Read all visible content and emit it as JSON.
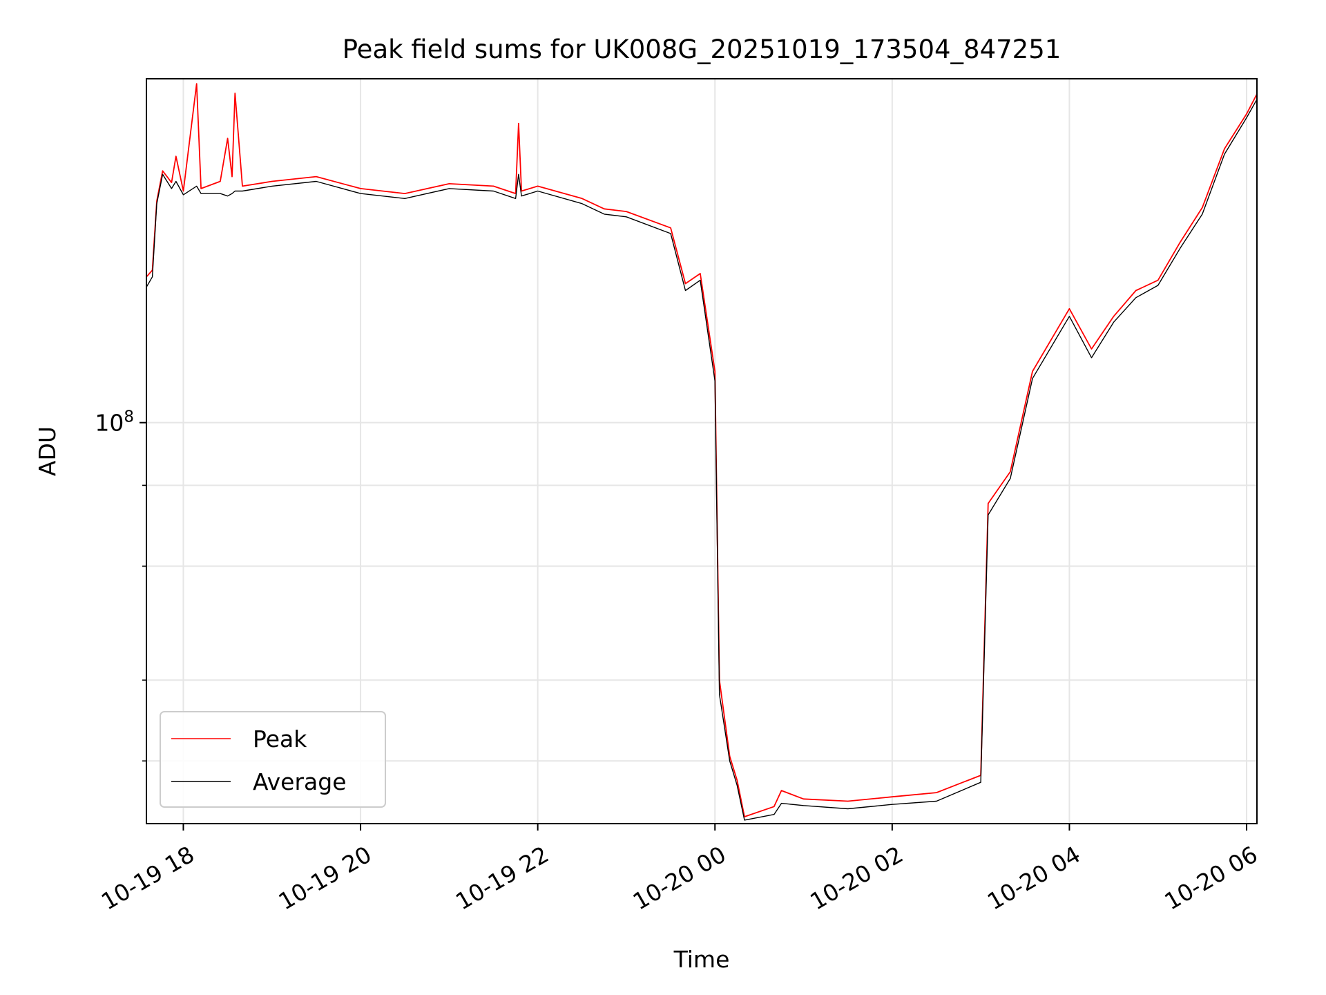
{
  "chart_data": {
    "type": "line",
    "title": "Peak field sums for UK008G_20251019_173504_847251",
    "xlabel": "Time",
    "ylabel": "ADU",
    "y_scale": "log",
    "grid": true,
    "legend_position": "lower-left",
    "xlim": [
      "2025-10-19 17:35",
      "2025-10-20 06:07"
    ],
    "ylim": [
      24000000,
      340000000
    ],
    "x_ticks": [
      {
        "value": "2025-10-19 18:00",
        "label": "10-19 18"
      },
      {
        "value": "2025-10-19 20:00",
        "label": "10-19 20"
      },
      {
        "value": "2025-10-19 22:00",
        "label": "10-19 22"
      },
      {
        "value": "2025-10-20 00:00",
        "label": "10-20 00"
      },
      {
        "value": "2025-10-20 02:00",
        "label": "10-20 02"
      },
      {
        "value": "2025-10-20 04:00",
        "label": "10-20 04"
      },
      {
        "value": "2025-10-20 06:00",
        "label": "10-20 06"
      }
    ],
    "y_ticks_major": [
      {
        "value": 100000000,
        "label_base": "10",
        "label_exp": "8"
      }
    ],
    "y_ticks_minor": [
      30000000,
      40000000,
      60000000,
      80000000
    ],
    "series": [
      {
        "name": "Peak",
        "color": "#ff0000",
        "points": [
          [
            "2025-10-19 17:35",
            168000000
          ],
          [
            "2025-10-19 17:39",
            172000000
          ],
          [
            "2025-10-19 17:42",
            220000000
          ],
          [
            "2025-10-19 17:46",
            245000000
          ],
          [
            "2025-10-19 17:52",
            235000000
          ],
          [
            "2025-10-19 17:55",
            258000000
          ],
          [
            "2025-10-19 18:00",
            228000000
          ],
          [
            "2025-10-19 18:09",
            334000000
          ],
          [
            "2025-10-19 18:12",
            230000000
          ],
          [
            "2025-10-19 18:25",
            236000000
          ],
          [
            "2025-10-19 18:30",
            275000000
          ],
          [
            "2025-10-19 18:33",
            240000000
          ],
          [
            "2025-10-19 18:35",
            323000000
          ],
          [
            "2025-10-19 18:40",
            232000000
          ],
          [
            "2025-10-19 19:00",
            236000000
          ],
          [
            "2025-10-19 19:30",
            240000000
          ],
          [
            "2025-10-19 20:00",
            230000000
          ],
          [
            "2025-10-19 20:30",
            226000000
          ],
          [
            "2025-10-19 21:00",
            234000000
          ],
          [
            "2025-10-19 21:30",
            232000000
          ],
          [
            "2025-10-19 21:45",
            226000000
          ],
          [
            "2025-10-19 21:47",
            290000000
          ],
          [
            "2025-10-19 21:49",
            228000000
          ],
          [
            "2025-10-19 22:00",
            232000000
          ],
          [
            "2025-10-19 22:30",
            222000000
          ],
          [
            "2025-10-19 22:45",
            214000000
          ],
          [
            "2025-10-19 23:00",
            212000000
          ],
          [
            "2025-10-19 23:30",
            200000000
          ],
          [
            "2025-10-19 23:40",
            164000000
          ],
          [
            "2025-10-19 23:50",
            170000000
          ],
          [
            "2025-10-20 00:00",
            120000000
          ],
          [
            "2025-10-20 00:03",
            40000000
          ],
          [
            "2025-10-20 00:10",
            30500000
          ],
          [
            "2025-10-20 00:15",
            28000000
          ],
          [
            "2025-10-20 00:20",
            24600000
          ],
          [
            "2025-10-20 00:40",
            25500000
          ],
          [
            "2025-10-20 00:45",
            27000000
          ],
          [
            "2025-10-20 01:00",
            26200000
          ],
          [
            "2025-10-20 01:30",
            26000000
          ],
          [
            "2025-10-20 02:00",
            26400000
          ],
          [
            "2025-10-20 02:30",
            26800000
          ],
          [
            "2025-10-20 03:00",
            28500000
          ],
          [
            "2025-10-20 03:05",
            75000000
          ],
          [
            "2025-10-20 03:20",
            84000000
          ],
          [
            "2025-10-20 03:35",
            120000000
          ],
          [
            "2025-10-20 04:00",
            150000000
          ],
          [
            "2025-10-20 04:15",
            130000000
          ],
          [
            "2025-10-20 04:30",
            146000000
          ],
          [
            "2025-10-20 04:45",
            160000000
          ],
          [
            "2025-10-20 05:00",
            166000000
          ],
          [
            "2025-10-20 05:15",
            190000000
          ],
          [
            "2025-10-20 05:30",
            215000000
          ],
          [
            "2025-10-20 05:45",
            265000000
          ],
          [
            "2025-10-20 06:00",
            300000000
          ],
          [
            "2025-10-20 06:07",
            322000000
          ]
        ]
      },
      {
        "name": "Average",
        "color": "#000000",
        "points": [
          [
            "2025-10-19 17:35",
            162000000
          ],
          [
            "2025-10-19 17:39",
            168000000
          ],
          [
            "2025-10-19 17:42",
            218000000
          ],
          [
            "2025-10-19 17:46",
            242000000
          ],
          [
            "2025-10-19 17:52",
            230000000
          ],
          [
            "2025-10-19 17:55",
            236000000
          ],
          [
            "2025-10-19 18:00",
            225000000
          ],
          [
            "2025-10-19 18:09",
            232000000
          ],
          [
            "2025-10-19 18:12",
            226000000
          ],
          [
            "2025-10-19 18:25",
            226000000
          ],
          [
            "2025-10-19 18:30",
            224000000
          ],
          [
            "2025-10-19 18:33",
            226000000
          ],
          [
            "2025-10-19 18:35",
            228000000
          ],
          [
            "2025-10-19 18:40",
            228000000
          ],
          [
            "2025-10-19 19:00",
            232000000
          ],
          [
            "2025-10-19 19:30",
            236000000
          ],
          [
            "2025-10-19 20:00",
            226000000
          ],
          [
            "2025-10-19 20:30",
            222000000
          ],
          [
            "2025-10-19 21:00",
            230000000
          ],
          [
            "2025-10-19 21:30",
            228000000
          ],
          [
            "2025-10-19 21:45",
            222000000
          ],
          [
            "2025-10-19 21:47",
            242000000
          ],
          [
            "2025-10-19 21:49",
            224000000
          ],
          [
            "2025-10-19 22:00",
            228000000
          ],
          [
            "2025-10-19 22:30",
            218000000
          ],
          [
            "2025-10-19 22:45",
            210000000
          ],
          [
            "2025-10-19 23:00",
            208000000
          ],
          [
            "2025-10-19 23:30",
            196000000
          ],
          [
            "2025-10-19 23:40",
            160000000
          ],
          [
            "2025-10-19 23:50",
            166000000
          ],
          [
            "2025-10-20 00:00",
            116000000
          ],
          [
            "2025-10-20 00:03",
            38000000
          ],
          [
            "2025-10-20 00:10",
            30000000
          ],
          [
            "2025-10-20 00:15",
            27500000
          ],
          [
            "2025-10-20 00:20",
            24300000
          ],
          [
            "2025-10-20 00:40",
            24800000
          ],
          [
            "2025-10-20 00:45",
            25800000
          ],
          [
            "2025-10-20 01:00",
            25600000
          ],
          [
            "2025-10-20 01:30",
            25300000
          ],
          [
            "2025-10-20 02:00",
            25700000
          ],
          [
            "2025-10-20 02:30",
            26000000
          ],
          [
            "2025-10-20 03:00",
            27800000
          ],
          [
            "2025-10-20 03:05",
            72000000
          ],
          [
            "2025-10-20 03:20",
            82000000
          ],
          [
            "2025-10-20 03:35",
            117000000
          ],
          [
            "2025-10-20 04:00",
            146000000
          ],
          [
            "2025-10-20 04:15",
            126000000
          ],
          [
            "2025-10-20 04:30",
            143000000
          ],
          [
            "2025-10-20 04:45",
            156000000
          ],
          [
            "2025-10-20 05:00",
            163000000
          ],
          [
            "2025-10-20 05:15",
            186000000
          ],
          [
            "2025-10-20 05:30",
            210000000
          ],
          [
            "2025-10-20 05:45",
            260000000
          ],
          [
            "2025-10-20 06:00",
            296000000
          ],
          [
            "2025-10-20 06:07",
            316000000
          ]
        ]
      }
    ]
  }
}
